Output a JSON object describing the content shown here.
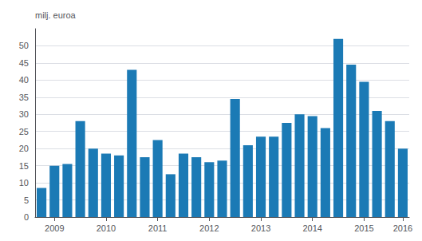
{
  "chart_data": {
    "type": "bar",
    "ylabel": "milj. euroa",
    "categories": [
      null,
      "2009",
      null,
      null,
      null,
      "2010",
      null,
      null,
      null,
      "2011",
      null,
      null,
      null,
      "2012",
      null,
      null,
      null,
      "2013",
      null,
      null,
      null,
      "2014",
      null,
      null,
      null,
      "2015",
      null,
      null,
      "2016"
    ],
    "values": [
      8.5,
      15.0,
      15.5,
      28.0,
      20.0,
      18.5,
      18.0,
      43.0,
      17.5,
      22.5,
      12.5,
      18.5,
      17.5,
      16.0,
      16.5,
      34.5,
      21.0,
      23.5,
      23.5,
      27.5,
      30.0,
      29.5,
      26.0,
      52.0,
      44.5,
      39.5,
      31.0,
      28.0,
      20.0
    ],
    "color": "#1b7ab5",
    "ylim": [
      0,
      55
    ],
    "yticks": [
      0,
      5,
      10,
      15,
      20,
      25,
      30,
      35,
      40,
      45,
      50
    ],
    "grid": true
  }
}
